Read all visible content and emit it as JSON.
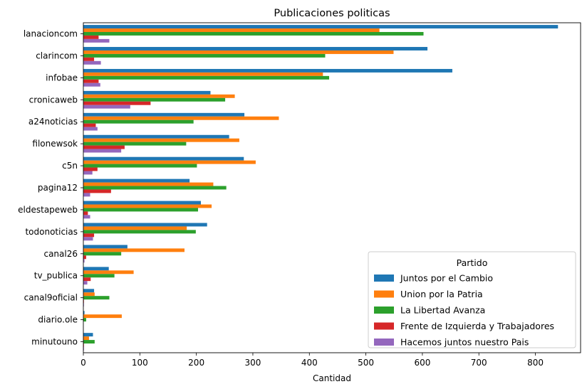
{
  "chart_data": {
    "type": "bar",
    "orientation": "horizontal",
    "title": "Publicaciones politicas",
    "xlabel": "Cantidad",
    "ylabel": "",
    "xlim": [
      0,
      880
    ],
    "xticks": [
      0,
      100,
      200,
      300,
      400,
      500,
      600,
      700,
      800
    ],
    "grid": false,
    "legend": {
      "title": "Partido",
      "placement": "lower-right"
    },
    "categories": [
      "lanacioncom",
      "clarincom",
      "infobae",
      "cronicaweb",
      "a24noticias",
      "filonewsok",
      "c5n",
      "pagina12",
      "eldestapeweb",
      "todonoticias",
      "canal26",
      "tv_publica",
      "canal9oficial",
      "diario.ole",
      "minutouno"
    ],
    "series": [
      {
        "name": "Juntos por el Cambio",
        "color": "#1f77b4",
        "values": [
          840,
          609,
          653,
          225,
          285,
          258,
          284,
          188,
          208,
          219,
          78,
          45,
          19,
          2,
          17
        ]
      },
      {
        "name": "Union por la Patria",
        "color": "#ff7f0e",
        "values": [
          524,
          549,
          424,
          268,
          346,
          276,
          305,
          230,
          227,
          183,
          179,
          89,
          20,
          68,
          10
        ]
      },
      {
        "name": "La Libertad Avanza",
        "color": "#2ca02c",
        "values": [
          602,
          428,
          435,
          251,
          195,
          182,
          201,
          253,
          203,
          199,
          67,
          55,
          46,
          5,
          20
        ]
      },
      {
        "name": "Frente de Izquierda y Trabajadores",
        "color": "#d62728",
        "values": [
          27,
          19,
          27,
          119,
          22,
          73,
          25,
          49,
          8,
          19,
          5,
          13,
          1,
          0,
          1
        ]
      },
      {
        "name": "Hacemos juntos nuestro Pais",
        "color": "#9467bd",
        "values": [
          46,
          31,
          30,
          83,
          25,
          67,
          16,
          12,
          12,
          17,
          2,
          7,
          1,
          0,
          1
        ]
      }
    ]
  }
}
